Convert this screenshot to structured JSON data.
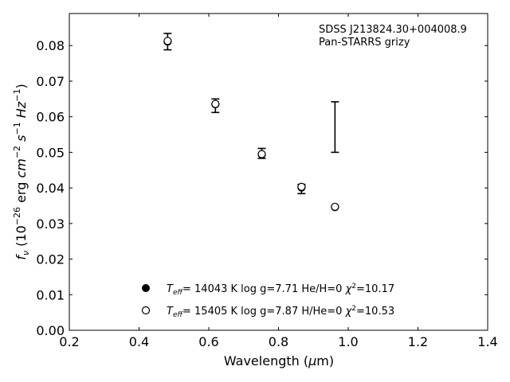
{
  "chart_data": {
    "type": "scatter",
    "annotation": [
      "SDSS J213824.30+004008.9",
      "Pan-STARRS grizy"
    ],
    "xlabel": "Wavelength (μm)",
    "ylabel": "f_ν (10^-26 erg cm^-2 s^-1 Hz^-1)",
    "xlim": [
      0.2,
      1.4
    ],
    "ylim": [
      0.0,
      0.089
    ],
    "xticks": [
      "0.2",
      "0.4",
      "0.6",
      "0.8",
      "1.0",
      "1.2",
      "1.4"
    ],
    "yticks": [
      "0.00",
      "0.01",
      "0.02",
      "0.03",
      "0.04",
      "0.05",
      "0.06",
      "0.07",
      "0.08"
    ],
    "grid": false,
    "legend_position": "bottom-center",
    "observed": [
      {
        "x": 0.482,
        "y": 0.0811,
        "ylow": 0.0788,
        "yhigh": 0.0834
      },
      {
        "x": 0.619,
        "y": 0.0631,
        "ylow": 0.0612,
        "yhigh": 0.065
      },
      {
        "x": 0.752,
        "y": 0.0497,
        "ylow": 0.0483,
        "yhigh": 0.0511
      },
      {
        "x": 0.866,
        "y": 0.0397,
        "ylow": 0.0384,
        "yhigh": 0.041
      },
      {
        "x": 0.962,
        "y": 0.057,
        "ylow": 0.05,
        "yhigh": 0.0642
      }
    ],
    "series": [
      {
        "name": "T_eff= 14043 K  log g=7.71  He/H=0  χ²=10.17",
        "marker": "filled-circle",
        "x": [
          0.482,
          0.619,
          0.752,
          0.866,
          0.962
        ],
        "y": [
          0.0811,
          0.0635,
          0.0494,
          0.0401,
          0.0346
        ]
      },
      {
        "name": "T_eff= 15405 K  log g=7.87  H/He=0  χ²=10.53",
        "marker": "open-circle",
        "x": [
          0.482,
          0.619,
          0.752,
          0.866,
          0.962
        ],
        "y": [
          0.0813,
          0.0636,
          0.0495,
          0.0403,
          0.0347
        ]
      }
    ],
    "colors": {
      "marker": "#000000",
      "axis": "#000000",
      "background": "#ffffff"
    }
  }
}
